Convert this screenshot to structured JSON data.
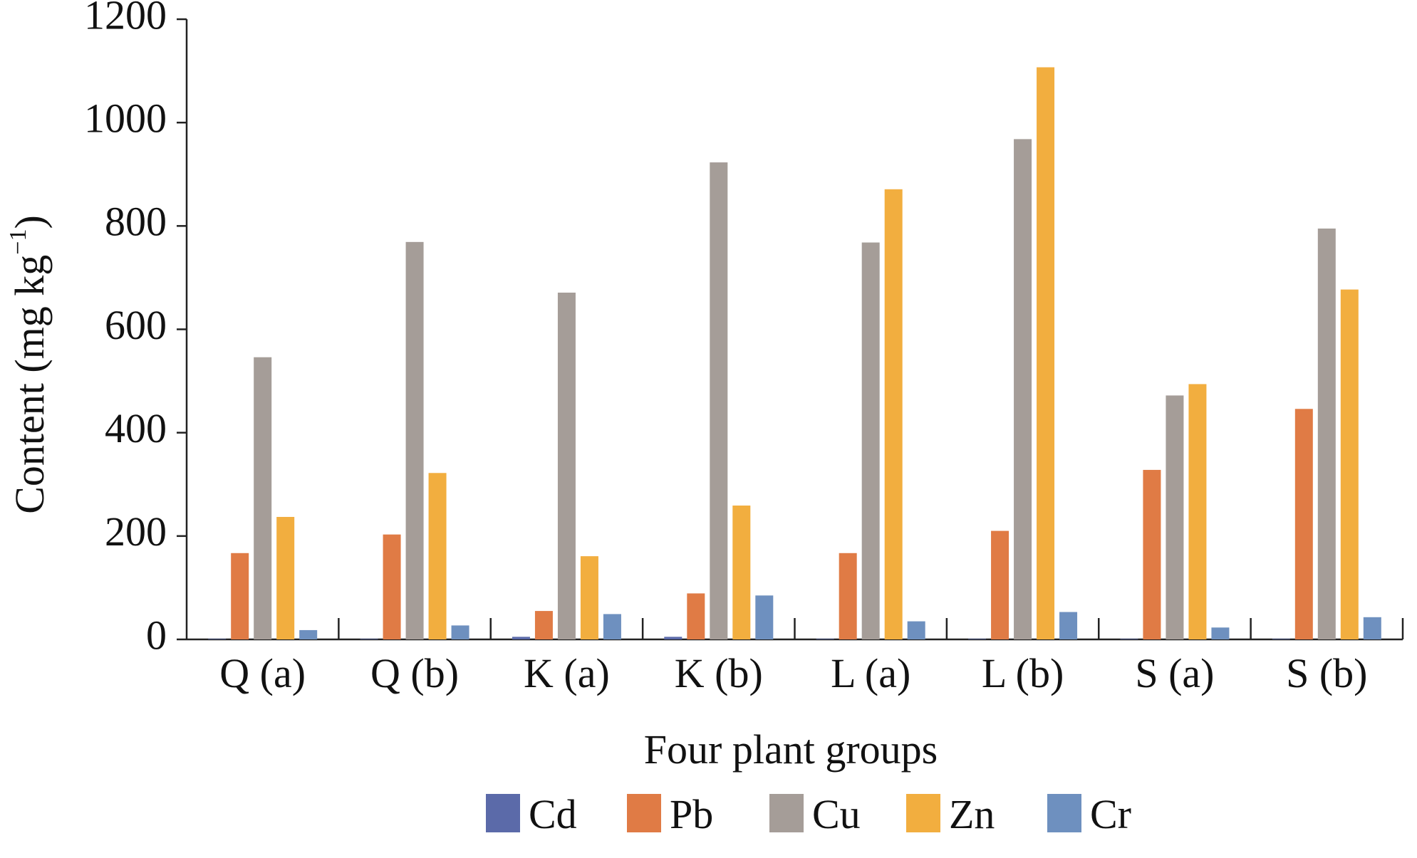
{
  "chart_data": {
    "type": "bar",
    "title": "",
    "xlabel": "Four plant groups",
    "ylabel": "Content (mg kg⁻¹)",
    "ylabel_parts": {
      "main": "Content (mg kg",
      "sup": "−1",
      "close": ")"
    },
    "ylim": [
      0,
      1200
    ],
    "yticks": [
      "0",
      "200",
      "400",
      "600",
      "800",
      "1000",
      "1200"
    ],
    "categories": [
      "Q (a)",
      "Q (b)",
      "K (a)",
      "K (b)",
      "L (a)",
      "L (b)",
      "S (a)",
      "S (b)"
    ],
    "series": [
      {
        "name": "Cd",
        "color": "#5b6aa9",
        "values": [
          1,
          1,
          5,
          5,
          1,
          1,
          1,
          1
        ]
      },
      {
        "name": "Pb",
        "color": "#e07b45",
        "values": [
          167,
          203,
          55,
          89,
          167,
          210,
          328,
          446
        ]
      },
      {
        "name": "Cu",
        "color": "#a59d98",
        "values": [
          546,
          769,
          671,
          923,
          768,
          968,
          472,
          795
        ]
      },
      {
        "name": "Zn",
        "color": "#f2ae3f",
        "values": [
          237,
          322,
          161,
          259,
          871,
          1107,
          494,
          677
        ]
      },
      {
        "name": "Cr",
        "color": "#6e90bf",
        "values": [
          18,
          27,
          49,
          85,
          35,
          53,
          23,
          43
        ]
      }
    ],
    "grid": false,
    "legend_position": "bottom"
  }
}
